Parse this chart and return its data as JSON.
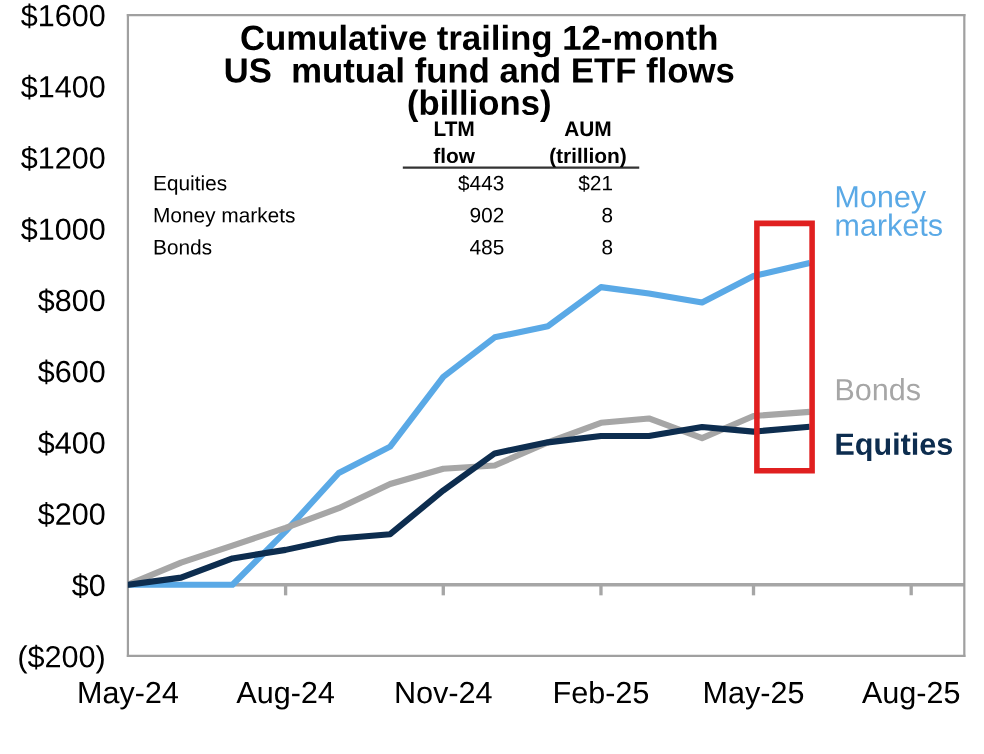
{
  "chart_data": {
    "type": "line",
    "title": "Cumulative trailing 12-month\nUS  mutual fund and ETF flows\n(billions)",
    "x": [
      "2024-05",
      "2024-06",
      "2024-07",
      "2024-08",
      "2024-09",
      "2024-10",
      "2024-11",
      "2024-12",
      "2025-01",
      "2025-02",
      "2025-03",
      "2025-04",
      "2025-05",
      "2025-06"
    ],
    "series": [
      {
        "name": "Money\nmarkets",
        "color": "#5aa9e6",
        "values": [
          0,
          0,
          0,
          150,
          314,
          388,
          584,
          695,
          726,
          836,
          818,
          793,
          867,
          902
        ]
      },
      {
        "name": "Bonds",
        "color": "#a6a6a6",
        "values": [
          0,
          62,
          110,
          160,
          215,
          283,
          326,
          335,
          400,
          455,
          467,
          412,
          474,
          485
        ]
      },
      {
        "name": "Equities",
        "color": "#0d2d4f",
        "values": [
          0,
          20,
          74,
          98,
          130,
          142,
          265,
          369,
          400,
          418,
          418,
          443,
          430,
          443
        ]
      }
    ],
    "xlim": [
      "2024-05",
      "2025-09"
    ],
    "xticks": [
      {
        "value": "2024-05",
        "label": "May-24"
      },
      {
        "value": "2024-08",
        "label": "Aug-24"
      },
      {
        "value": "2024-11",
        "label": "Nov-24"
      },
      {
        "value": "2025-02",
        "label": "Feb-25"
      },
      {
        "value": "2025-05",
        "label": "May-25"
      },
      {
        "value": "2025-08",
        "label": "Aug-25"
      }
    ],
    "ylim": [
      -200,
      1600
    ],
    "yticks": [
      {
        "value": -200,
        "label": "($200)"
      },
      {
        "value": 0,
        "label": "$0"
      },
      {
        "value": 200,
        "label": "$200"
      },
      {
        "value": 400,
        "label": "$400"
      },
      {
        "value": 600,
        "label": "$600"
      },
      {
        "value": 800,
        "label": "$800"
      },
      {
        "value": 1000,
        "label": "$1000"
      },
      {
        "value": 1200,
        "label": "$1200"
      },
      {
        "value": 1400,
        "label": "$1400"
      },
      {
        "value": 1600,
        "label": "$1600"
      }
    ],
    "ref_lines": [
      {
        "axis": "y",
        "value": 0,
        "color": "#a6a6a6"
      }
    ],
    "annotations": [
      "LTM\nflow",
      "AUM\n(trillion)",
      "Equities",
      "$443",
      "$21",
      "Money markets",
      "902",
      "8",
      "Bonds",
      "485",
      "8"
    ],
    "grid": false,
    "legend": false,
    "marker": "none",
    "line_style": "solid"
  }
}
